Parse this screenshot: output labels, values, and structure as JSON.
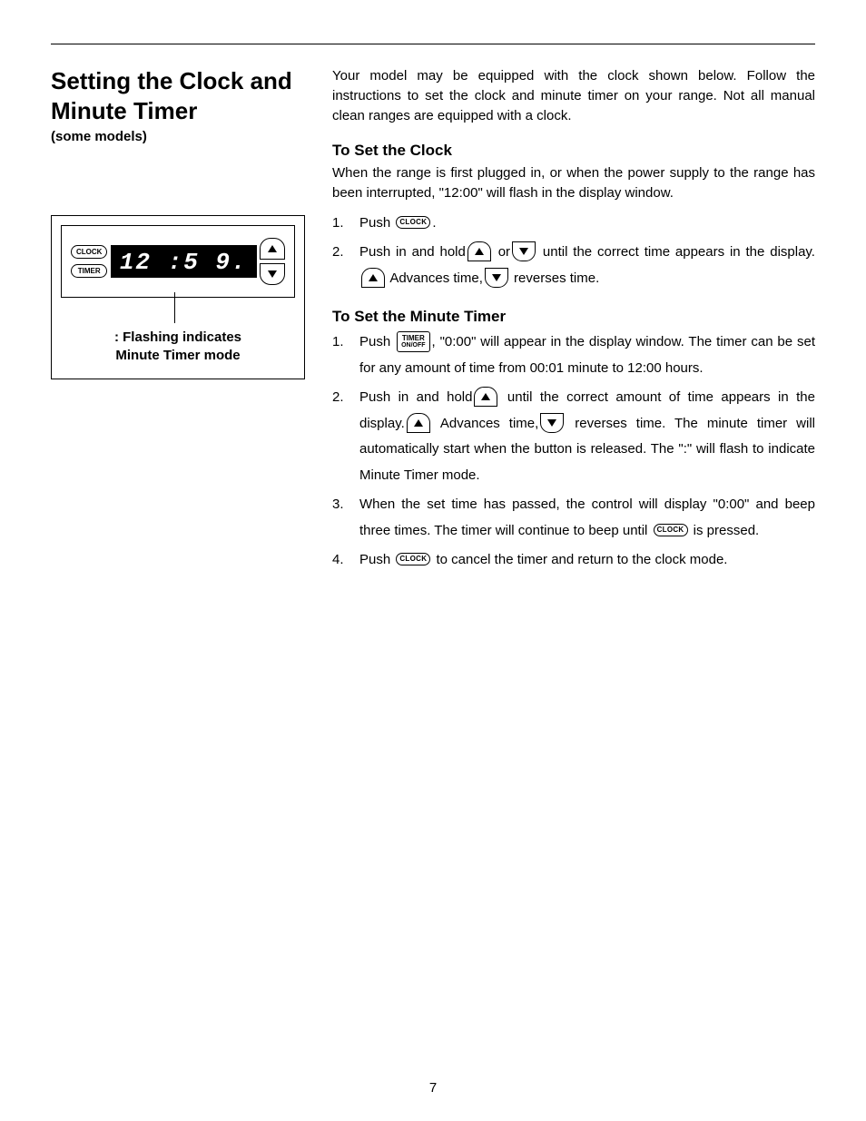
{
  "page_number": "7",
  "title": "Setting the Clock and Minute Timer",
  "subtitle": "(some models)",
  "intro": "Your model may be equipped with the clock shown below. Follow the instructions to set the clock and minute timer on your range. Not all manual clean ranges are equipped with a clock.",
  "clock": {
    "heading": "To Set the Clock",
    "intro": "When the range is first plugged in, or when the power supply to the range has been interrupted, \"12:00\" will flash in the display window.",
    "step1_a": "Push ",
    "step1_b": ".",
    "step2_a": "Push in and hold",
    "step2_b": " or",
    "step2_c": " until the correct time appears in the display.",
    "step2_d": " Advances time,",
    "step2_e": " reverses time."
  },
  "timer": {
    "heading": "To Set the Minute Timer",
    "step1_a": "Push ",
    "step1_b": ", \"0:00\" will appear in the display window. The timer can be set for any amount of time from 00:01 minute to 12:00 hours.",
    "step2_a": "Push in and hold",
    "step2_b": " until the correct amount of time appears in the display.",
    "step2_c": " Advances time,",
    "step2_d": " reverses time. The minute timer will automatically start when the button is released. The \":\" will flash to indicate Minute Timer mode.",
    "step3_a": "When the set time has passed, the control will display \"0:00\" and beep three times. The timer will continue to beep until ",
    "step3_b": " is pressed.",
    "step4_a": "Push ",
    "step4_b": " to cancel the timer and return to the clock mode."
  },
  "buttons": {
    "clock": "CLOCK",
    "timer": "TIMER",
    "timer_onoff_l1": "TIMER",
    "timer_onoff_l2": "ON/OFF"
  },
  "diagram": {
    "clock_btn": "CLOCK",
    "timer_btn": "TIMER",
    "display": "12 :5 9.",
    "caption_l1": ": Flashing indicates",
    "caption_l2": "Minute Timer mode"
  }
}
